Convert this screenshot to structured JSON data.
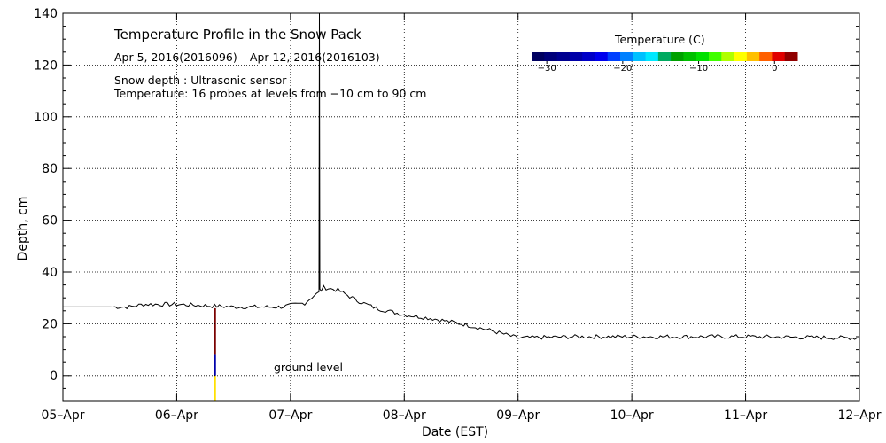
{
  "chart_data": {
    "type": "line",
    "title": "Temperature Profile in the Snow Pack",
    "subtitle": "Apr  5, 2016(2016096) – Apr 12, 2016(2016103)",
    "notes": [
      "Snow depth : Ultrasonic sensor",
      "Temperature: 16 probes at levels from −10 cm to 90 cm"
    ],
    "xlabel": "Date (EST)",
    "ylabel": "Depth, cm",
    "x_tick_labels": [
      "05–Apr",
      "06–Apr",
      "07–Apr",
      "08–Apr",
      "09–Apr",
      "10–Apr",
      "11–Apr",
      "12–Apr"
    ],
    "x_range": [
      "2016-04-05",
      "2016-04-12"
    ],
    "y_ticks": [
      0,
      20,
      40,
      60,
      80,
      100,
      120,
      140
    ],
    "ylim": [
      -10,
      140
    ],
    "grid": true,
    "annotation": "ground level",
    "series": [
      {
        "name": "Snow depth",
        "color": "#000000",
        "points": [
          [
            "2016-04-05 00:00",
            26.5
          ],
          [
            "2016-04-05 14:00",
            26.5
          ],
          [
            "2016-04-05 17:00",
            27.5
          ],
          [
            "2016-04-06 00:00",
            27.5
          ],
          [
            "2016-04-06 12:00",
            26.5
          ],
          [
            "2016-04-06 22:00",
            26.5
          ],
          [
            "2016-04-07 03:00",
            28
          ],
          [
            "2016-04-07 05:00",
            31
          ],
          [
            "2016-04-07 06:00",
            32
          ],
          [
            "2016-04-07 07:00",
            34
          ],
          [
            "2016-04-07 10:00",
            33
          ],
          [
            "2016-04-07 14:00",
            29
          ],
          [
            "2016-04-07 18:00",
            26
          ],
          [
            "2016-04-08 00:00",
            23.5
          ],
          [
            "2016-04-08 06:00",
            22
          ],
          [
            "2016-04-08 12:00",
            20
          ],
          [
            "2016-04-08 18:00",
            17.5
          ],
          [
            "2016-04-09 00:00",
            14.5
          ],
          [
            "2016-04-09 12:00",
            15
          ],
          [
            "2016-04-10 00:00",
            15
          ],
          [
            "2016-04-11 00:00",
            15
          ],
          [
            "2016-04-12 00:00",
            14.5
          ]
        ],
        "spike": {
          "time": "2016-04-07 06:00",
          "max": 140
        }
      }
    ],
    "temperature_profile": {
      "time": "2016-04-06 08:00",
      "segments": [
        {
          "from": -10,
          "to": 0,
          "color": "#ffe000"
        },
        {
          "from": 0,
          "to": 8,
          "color": "#0000aa"
        },
        {
          "from": 8,
          "to": 26,
          "color": "#7a0000"
        }
      ]
    },
    "colorbar": {
      "title": "Temperature (C)",
      "range": [
        -32,
        3
      ],
      "tick_values": [
        -30,
        -20,
        -10,
        0
      ],
      "tick_labels": [
        "−30",
        "−20",
        "−10",
        "0"
      ],
      "colors": [
        "#000060",
        "#00007a",
        "#000090",
        "#0000a8",
        "#0000c8",
        "#0000ee",
        "#0040ff",
        "#0080ff",
        "#00c0ff",
        "#00e8ff",
        "#00aa60",
        "#00a000",
        "#00c000",
        "#00e000",
        "#40ff00",
        "#b0ff00",
        "#ffff00",
        "#ffc000",
        "#ff6000",
        "#e00000",
        "#900000"
      ]
    }
  }
}
